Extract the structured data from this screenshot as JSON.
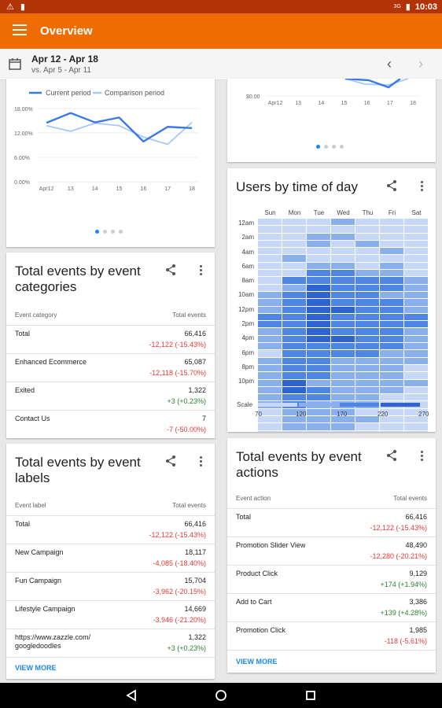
{
  "status_bar": {
    "time": "10:03",
    "signal_label": "3G"
  },
  "app_bar": {
    "title": "Overview",
    "icon": "hamburger-menu-icon"
  },
  "date_bar": {
    "range": "Apr 12 - Apr 18",
    "comparison": "vs. Apr 5 - Apr 11"
  },
  "line_chart": {
    "legend_current": "Current period",
    "legend_comparison": "Comparison period",
    "chart_data": {
      "type": "line",
      "x": [
        "Apr12",
        "13",
        "14",
        "15",
        "16",
        "17",
        "18"
      ],
      "series": [
        {
          "name": "Current period",
          "values": [
            14.5,
            16.9,
            14.6,
            15.8,
            9.9,
            13.5,
            13.2
          ]
        },
        {
          "name": "Comparison period",
          "values": [
            13.8,
            12.4,
            14.4,
            13.8,
            11.0,
            9.2,
            14.6
          ]
        }
      ],
      "y_ticks": [
        "18.00%",
        "12.00%",
        "6.00%",
        "0.00%"
      ],
      "ylim": [
        0,
        18
      ]
    }
  },
  "top_right_chart": {
    "y_tick": "$0.00",
    "x": [
      "Apr12",
      "13",
      "14",
      "15",
      "16",
      "17",
      "18"
    ]
  },
  "event_categories": {
    "title": "Total events by event categories",
    "col1": "Event category",
    "col2": "Total events",
    "rows": [
      {
        "label": "Total",
        "value": "66,416",
        "change": "-12,122 (-15.43%)",
        "trend": "neg"
      },
      {
        "label": "Enhanced Ecommerce",
        "value": "65,087",
        "change": "-12,118 (-15.70%)",
        "trend": "neg"
      },
      {
        "label": "Exited",
        "value": "1,322",
        "change": "+3 (+0.23%)",
        "trend": "pos"
      },
      {
        "label": "Contact Us",
        "value": "7",
        "change": "-7 (-50.00%)",
        "trend": "neg"
      }
    ]
  },
  "event_labels": {
    "title": "Total events by event labels",
    "col1": "Event label",
    "col2": "Total events",
    "rows": [
      {
        "label": "Total",
        "value": "66,416",
        "change": "-12,122 (-15.43%)",
        "trend": "neg"
      },
      {
        "label": "New Campaign",
        "value": "18,117",
        "change": "-4,085 (-18.40%)",
        "trend": "neg"
      },
      {
        "label": "Fun Campaign",
        "value": "15,704",
        "change": "-3,962 (-20.15%)",
        "trend": "neg"
      },
      {
        "label": "Lifestyle Campaign",
        "value": "14,669",
        "change": "-3,946 (-21.20%)",
        "trend": "neg"
      },
      {
        "label": "https://www.zazzle.com/ googledoodles",
        "value": "1,322",
        "change": "+3 (+0.23%)",
        "trend": "pos"
      }
    ],
    "view_more": "VIEW MORE"
  },
  "time_of_day": {
    "title": "Users by time of day",
    "days": [
      "Sun",
      "Mon",
      "Tue",
      "Wed",
      "Thu",
      "Fri",
      "Sat"
    ],
    "hours": [
      "12am",
      "2am",
      "4am",
      "6am",
      "8am",
      "10am",
      "12pm",
      "2pm",
      "4pm",
      "6pm",
      "8pm",
      "10pm"
    ],
    "scale_label": "Scale",
    "scale_ticks": [
      "70",
      "120",
      "170",
      "220",
      "270"
    ],
    "scale_colors": [
      "#c6d8f5",
      "#8ab0eb",
      "#4f86e2",
      "#2f63cf"
    ],
    "chart_data": {
      "type": "heatmap",
      "x": [
        "Sun",
        "Mon",
        "Tue",
        "Wed",
        "Thu",
        "Fri",
        "Sat"
      ],
      "levels": [
        [
          1,
          1,
          1,
          2,
          1,
          1,
          1
        ],
        [
          1,
          1,
          1,
          1,
          1,
          1,
          1
        ],
        [
          1,
          1,
          2,
          2,
          1,
          1,
          1
        ],
        [
          1,
          1,
          2,
          1,
          2,
          1,
          1
        ],
        [
          1,
          1,
          1,
          1,
          1,
          2,
          1
        ],
        [
          1,
          2,
          1,
          1,
          1,
          1,
          1
        ],
        [
          1,
          1,
          2,
          2,
          1,
          2,
          1
        ],
        [
          1,
          1,
          3,
          3,
          2,
          2,
          1
        ],
        [
          1,
          3,
          3,
          3,
          3,
          3,
          2
        ],
        [
          1,
          2,
          4,
          3,
          3,
          3,
          2
        ],
        [
          2,
          3,
          4,
          3,
          3,
          2,
          2
        ],
        [
          2,
          3,
          4,
          3,
          3,
          3,
          2
        ],
        [
          2,
          3,
          4,
          4,
          3,
          3,
          2
        ],
        [
          3,
          3,
          4,
          3,
          3,
          3,
          3
        ],
        [
          3,
          3,
          4,
          3,
          3,
          3,
          3
        ],
        [
          2,
          3,
          4,
          3,
          3,
          3,
          2
        ],
        [
          2,
          3,
          4,
          4,
          3,
          3,
          2
        ],
        [
          2,
          3,
          3,
          3,
          3,
          3,
          2
        ],
        [
          1,
          3,
          3,
          3,
          3,
          2,
          2
        ],
        [
          2,
          3,
          3,
          2,
          2,
          2,
          2
        ],
        [
          2,
          3,
          3,
          2,
          2,
          2,
          1
        ],
        [
          2,
          3,
          3,
          2,
          2,
          2,
          1
        ],
        [
          2,
          4,
          2,
          2,
          2,
          2,
          2
        ],
        [
          2,
          4,
          3,
          2,
          2,
          2,
          1
        ],
        [
          2,
          3,
          3,
          2,
          2,
          1,
          1
        ],
        [
          2,
          3,
          2,
          2,
          2,
          1,
          1
        ],
        [
          1,
          2,
          2,
          2,
          1,
          1,
          1
        ],
        [
          1,
          2,
          2,
          2,
          2,
          1,
          1
        ],
        [
          1,
          2,
          2,
          2,
          1,
          1,
          1
        ],
        [
          1,
          1,
          1,
          1,
          1,
          1,
          1
        ],
        [
          1,
          2,
          1,
          1,
          1,
          1,
          1
        ],
        [
          1,
          1,
          1,
          1,
          1,
          1,
          1
        ],
        [
          1,
          1,
          1,
          1,
          1,
          1,
          1
        ]
      ]
    }
  },
  "event_actions": {
    "title": "Total events by event actions",
    "col1": "Event action",
    "col2": "Total events",
    "rows": [
      {
        "label": "Total",
        "value": "66,416",
        "change": "-12,122 (-15.43%)",
        "trend": "neg"
      },
      {
        "label": "Promotion Slider View",
        "value": "48,490",
        "change": "-12,280 (-20.21%)",
        "trend": "neg"
      },
      {
        "label": "Product Click",
        "value": "9,129",
        "change": "+174 (+1.94%)",
        "trend": "pos"
      },
      {
        "label": "Add to Cart",
        "value": "3,386",
        "change": "+139 (+4.28%)",
        "trend": "pos"
      },
      {
        "label": "Promotion Click",
        "value": "1,985",
        "change": "-118 (-5.61%)",
        "trend": "neg"
      }
    ],
    "view_more": "VIEW MORE"
  },
  "colors": {
    "current": "#3b78e7",
    "comparison": "#a8c7fa",
    "neg": "#e53935",
    "pos": "#2e7d32"
  }
}
